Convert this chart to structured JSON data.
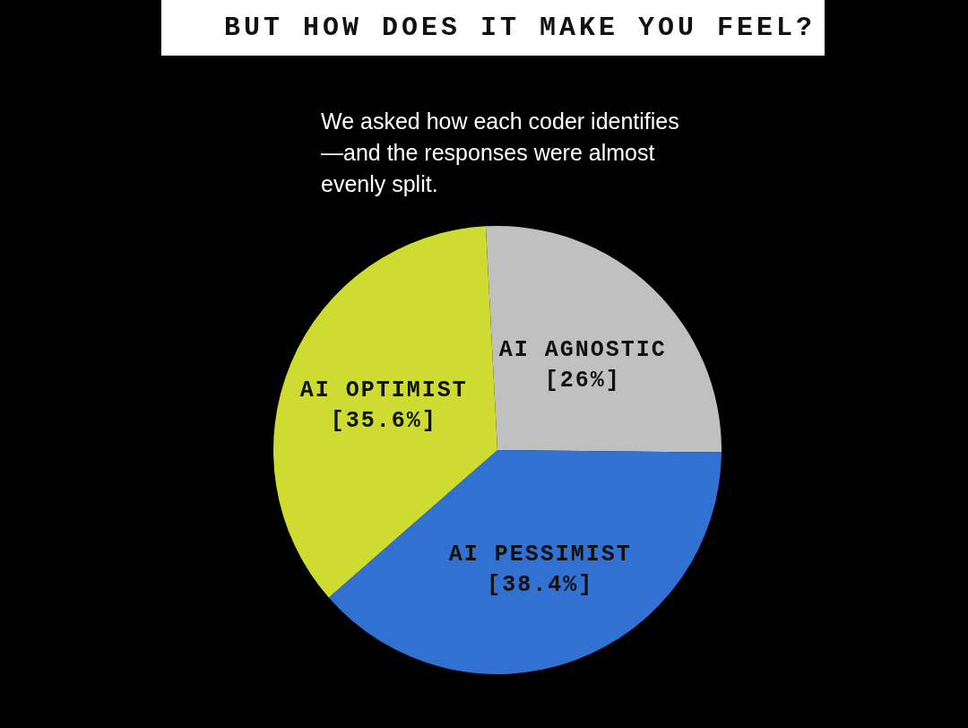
{
  "chart_data": {
    "type": "pie",
    "title": "BUT HOW DOES IT MAKE YOU FEEL?",
    "subtitle": "We asked how each coder identifies—and the responses were almost evenly split.",
    "categories": [
      "AI AGNOSTIC",
      "AI PESSIMIST",
      "AI OPTIMIST"
    ],
    "values": [
      26,
      38.4,
      35.6
    ],
    "colors": [
      "#c0c0c0",
      "#3071d2",
      "#cedb30"
    ],
    "value_labels": [
      "[26%]",
      "[38.4%]",
      "[35.6%]"
    ],
    "legend": false
  }
}
